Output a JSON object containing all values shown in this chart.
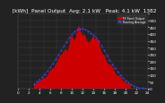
{
  "title": "  [kWh]  Panel Output  Avg: 2.1 kW   Peak: 4.1 kW  1382",
  "background_color": "#222222",
  "plot_bg": "#222222",
  "bar_color": "#cc0000",
  "avg_line_color": "#4444ff",
  "grid_color": "#555555",
  "text_color": "#ffffff",
  "ylim": [
    0,
    550
  ],
  "num_bars": 144,
  "title_fontsize": 4.2,
  "tick_fontsize": 3.0,
  "legend_entries": [
    "PV Panel Output",
    "Running Average"
  ],
  "legend_colors": [
    "#cc0000",
    "#4444ff"
  ],
  "yticks": [
    0,
    50,
    100,
    150,
    200,
    250,
    300,
    350,
    400,
    450,
    500,
    550
  ],
  "ytick_labels": [
    "0",
    "50",
    "100",
    "150",
    "200",
    "250",
    "300",
    "350",
    "400",
    "450",
    "500",
    ""
  ],
  "vgrid_count": 10,
  "hgrid_count": 11
}
